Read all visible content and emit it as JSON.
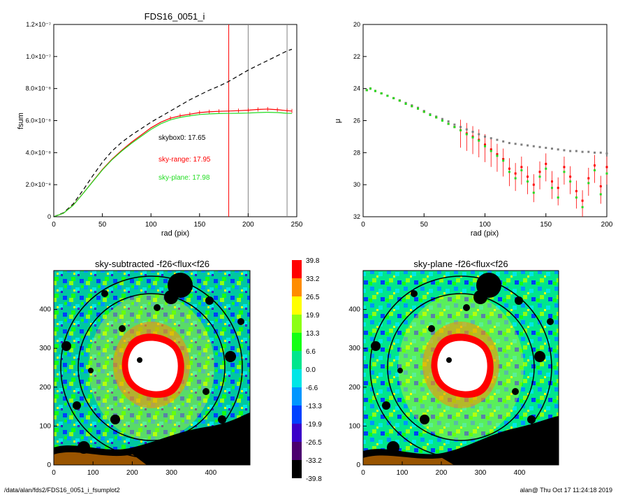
{
  "colors": {
    "black": "#000000",
    "red": "#ff0000",
    "green": "#22dd22",
    "grey": "#808080",
    "colorbar": [
      "#000000",
      "#4b006e",
      "#3a00c8",
      "#0040ff",
      "#0096ff",
      "#00e6e6",
      "#00e68c",
      "#14ff14",
      "#8cff14",
      "#ffff00",
      "#ff8c00",
      "#ff0000"
    ]
  },
  "footer": {
    "path": "/data/alan/fds2/FDS16_0051_i_fsumplot2",
    "stamp": "alan@  Thu Oct 17 11:24:18 2019"
  },
  "chart_data": [
    {
      "id": "growth-curve",
      "type": "line",
      "title": "FDS16_0051_i",
      "xlabel": "rad (pix)",
      "ylabel": "fsum",
      "xlim": [
        0,
        250
      ],
      "ylim": [
        0,
        1.2e-07
      ],
      "xticks": [
        "0",
        "50",
        "100",
        "150",
        "200",
        "250"
      ],
      "yticks": [
        "0",
        "2.0×10⁻⁸",
        "4.0×10⁻⁸",
        "6.0×10⁻⁸",
        "8.0×10⁻⁸",
        "1.0×10⁻⁷",
        "1.2×10⁻⁷"
      ],
      "annotations": [
        {
          "text": "skybox0: 17.65",
          "color": "#000000"
        },
        {
          "text": "sky-range: 17.95",
          "color": "#ff0000"
        },
        {
          "text": "sky-plane: 17.98",
          "color": "#22dd22"
        }
      ],
      "vlines": [
        {
          "x": 180,
          "color": "#ff0000"
        },
        {
          "x": 200,
          "color": "#808080"
        },
        {
          "x": 240,
          "color": "#808080"
        }
      ],
      "series": [
        {
          "style": "dashed",
          "color": "#000000",
          "x": [
            0,
            10,
            20,
            30,
            40,
            50,
            60,
            70,
            80,
            90,
            100,
            110,
            120,
            130,
            140,
            150,
            160,
            170,
            180,
            190,
            200,
            210,
            220,
            230,
            240,
            245
          ],
          "y": [
            0,
            2.5e-09,
            8e-09,
            1.65e-08,
            2.55e-08,
            3.4e-08,
            4.1e-08,
            4.65e-08,
            5.1e-08,
            5.5e-08,
            5.9e-08,
            6.25e-08,
            6.6e-08,
            6.95e-08,
            7.3e-08,
            7.6e-08,
            7.9e-08,
            8.15e-08,
            8.45e-08,
            8.8e-08,
            9.15e-08,
            9.45e-08,
            9.75e-08,
            1.005e-07,
            1.035e-07,
            1.045e-07
          ]
        },
        {
          "style": "solid",
          "color": "#ff0000",
          "x": [
            0,
            10,
            20,
            30,
            40,
            50,
            60,
            70,
            80,
            90,
            100,
            110,
            120,
            130,
            140,
            150,
            160,
            170,
            180,
            190,
            200,
            210,
            220,
            230,
            240,
            245
          ],
          "y": [
            0,
            2.2e-09,
            7.2e-09,
            1.45e-08,
            2.2e-08,
            2.95e-08,
            3.6e-08,
            4.15e-08,
            4.65e-08,
            5.1e-08,
            5.55e-08,
            5.9e-08,
            6.15e-08,
            6.3e-08,
            6.4e-08,
            6.5e-08,
            6.55e-08,
            6.58e-08,
            6.6e-08,
            6.62e-08,
            6.65e-08,
            6.7e-08,
            6.72e-08,
            6.68e-08,
            6.62e-08,
            6.6e-08
          ]
        },
        {
          "style": "solid",
          "color": "#22dd22",
          "x": [
            0,
            10,
            20,
            30,
            40,
            50,
            60,
            70,
            80,
            90,
            100,
            110,
            120,
            130,
            140,
            150,
            160,
            170,
            180,
            190,
            200,
            210,
            220,
            230,
            240,
            245
          ],
          "y": [
            0,
            2.2e-09,
            7.1e-09,
            1.44e-08,
            2.18e-08,
            2.92e-08,
            3.56e-08,
            4.1e-08,
            4.58e-08,
            5.02e-08,
            5.45e-08,
            5.8e-08,
            6.05e-08,
            6.2e-08,
            6.3e-08,
            6.38e-08,
            6.42e-08,
            6.44e-08,
            6.45e-08,
            6.46e-08,
            6.47e-08,
            6.5e-08,
            6.52e-08,
            6.5e-08,
            6.46e-08,
            6.45e-08
          ]
        }
      ]
    },
    {
      "id": "surface-brightness",
      "type": "scatter",
      "xlabel": "rad (pix)",
      "ylabel": "μ",
      "xlim": [
        0,
        200
      ],
      "ylim": [
        32,
        20
      ],
      "xticks": [
        "0",
        "50",
        "100",
        "150",
        "200"
      ],
      "yticks": [
        "20",
        "22",
        "24",
        "26",
        "28",
        "30",
        "32"
      ],
      "series": [
        {
          "marker": "square",
          "color": "#808080",
          "x": [
            3,
            6,
            10,
            15,
            20,
            25,
            30,
            35,
            40,
            45,
            50,
            55,
            60,
            65,
            70,
            75,
            80,
            85,
            90,
            95,
            100,
            105,
            110,
            115,
            120,
            125,
            130,
            135,
            140,
            145,
            150,
            155,
            160,
            165,
            170,
            175,
            180,
            185,
            190,
            195,
            200
          ],
          "y": [
            24.1,
            24.0,
            24.15,
            24.3,
            24.45,
            24.6,
            24.75,
            24.9,
            25.05,
            25.2,
            25.4,
            25.6,
            25.75,
            25.9,
            26.05,
            26.25,
            26.4,
            26.55,
            26.7,
            26.85,
            27.0,
            27.1,
            27.2,
            27.3,
            27.4,
            27.45,
            27.5,
            27.55,
            27.6,
            27.65,
            27.7,
            27.75,
            27.8,
            27.85,
            27.9,
            27.9,
            27.95,
            27.95,
            28.0,
            28.0,
            28.05
          ]
        },
        {
          "marker": "square",
          "color": "#ff0000",
          "x": [
            3,
            6,
            10,
            15,
            20,
            25,
            30,
            35,
            40,
            45,
            50,
            55,
            60,
            65,
            70,
            75,
            80,
            85,
            90,
            95,
            100,
            105,
            110,
            115,
            120,
            125,
            130,
            135,
            140,
            145,
            150,
            155,
            160,
            165,
            170,
            175,
            180,
            185,
            190,
            195,
            200
          ],
          "y": [
            24.1,
            24.0,
            24.15,
            24.3,
            24.45,
            24.6,
            24.75,
            24.95,
            25.1,
            25.25,
            25.45,
            25.65,
            25.8,
            26.0,
            26.2,
            26.4,
            26.6,
            26.8,
            27.0,
            27.2,
            27.5,
            27.8,
            28.1,
            28.4,
            29.0,
            29.3,
            28.9,
            29.5,
            30.0,
            29.2,
            28.7,
            29.8,
            30.2,
            28.9,
            29.5,
            30.4,
            31.0,
            29.6,
            28.8,
            30.1,
            28.9
          ]
        },
        {
          "marker": "square",
          "color": "#22dd22",
          "x": [
            3,
            6,
            10,
            15,
            20,
            25,
            30,
            35,
            40,
            45,
            50,
            55,
            60,
            65,
            70,
            75,
            80,
            85,
            90,
            95,
            100,
            105,
            110,
            115,
            120,
            125,
            130,
            135,
            140,
            145,
            150,
            155,
            160,
            165,
            170,
            175,
            180,
            185,
            190,
            195,
            200
          ],
          "y": [
            24.1,
            24.0,
            24.15,
            24.3,
            24.45,
            24.6,
            24.75,
            24.95,
            25.1,
            25.25,
            25.45,
            25.65,
            25.8,
            26.0,
            26.2,
            26.4,
            26.6,
            26.85,
            27.05,
            27.25,
            27.6,
            27.9,
            28.2,
            28.5,
            29.2,
            29.6,
            29.1,
            29.8,
            30.5,
            29.5,
            29.0,
            30.2,
            30.8,
            29.2,
            29.8,
            30.8,
            31.4,
            29.9,
            29.1,
            30.6,
            29.3
          ]
        }
      ]
    },
    {
      "id": "sky-subtracted-map",
      "type": "heatmap",
      "title": "sky-subtracted -f26<flux<f26",
      "xlim": [
        0,
        500
      ],
      "ylim": [
        0,
        500
      ],
      "xticks": [
        "0",
        "100",
        "200",
        "300",
        "400"
      ],
      "yticks": [
        "0",
        "100",
        "200",
        "300",
        "400"
      ]
    },
    {
      "id": "colorbar",
      "type": "heatmap",
      "levels": [
        "39.8",
        "33.2",
        "26.5",
        "19.9",
        "13.3",
        "6.6",
        "0.0",
        "-6.6",
        "-13.3",
        "-19.9",
        "-26.5",
        "-33.2",
        "-39.8"
      ]
    },
    {
      "id": "sky-plane-map",
      "type": "heatmap",
      "title": "sky-plane -f26<flux<f26",
      "xlim": [
        0,
        500
      ],
      "ylim": [
        0,
        500
      ],
      "xticks": [
        "0",
        "100",
        "200",
        "300",
        "400"
      ],
      "yticks": [
        "0",
        "100",
        "200",
        "300",
        "400"
      ]
    }
  ]
}
